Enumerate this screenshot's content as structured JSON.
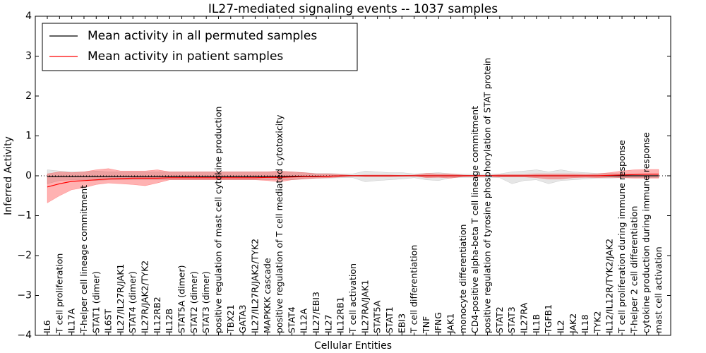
{
  "chart_data": {
    "type": "line",
    "title": "IL27-mediated signaling events -- 1037 samples",
    "xlabel": "Cellular Entities",
    "ylabel": "Inferred Activity",
    "ylim": [
      -4,
      4
    ],
    "yticks": [
      -4,
      -3,
      -2,
      -1,
      0,
      1,
      2,
      3,
      4
    ],
    "ytick_labels": [
      "−4",
      "−3",
      "−2",
      "−1",
      "0",
      "1",
      "2",
      "3",
      "4"
    ],
    "legend": {
      "location": "top-left",
      "entries": [
        {
          "label": "Mean activity in all permuted samples",
          "color": "#000000"
        },
        {
          "label": "Mean activity in patient samples",
          "color": "#ff0000"
        }
      ]
    },
    "categories": [
      "IL6",
      "T cell proliferation",
      "IL17A",
      "T-helper cell lineage commitment",
      "STAT1 (dimer)",
      "IL6ST",
      "IL27/IL27R/JAK1",
      "STAT4 (dimer)",
      "IL27R/JAK2/TYK2",
      "IL12RB2",
      "IL12B",
      "STAT5A (dimer)",
      "STAT2 (dimer)",
      "STAT3 (dimer)",
      "positive regulation of mast cell cytokine production",
      "TBX21",
      "GATA3",
      "IL27/IL27R/JAK2/TYK2",
      "MAPKKK cascade",
      "positive regulation of T cell mediated cytotoxicity",
      "STAT4",
      "IL12A",
      "IL27/EBI3",
      "IL27",
      "IL12RB1",
      "T cell activation",
      "IL27RA/JAK1",
      "STAT5A",
      "STAT1",
      "EBI3",
      "T cell differentiation",
      "TNF",
      "IFNG",
      "JAK1",
      "monocyte differentiation",
      "CD4-positive alpha-beta T cell lineage commitment",
      "positive regulation of tyrosine phosphorylation of STAT protein",
      "STAT2",
      "STAT3",
      "IL27RA",
      "IL1B",
      "TGFB1",
      "IL2",
      "JAK2",
      "IL18",
      "TYK2",
      "IL12/IL12R/TYK2/JAK2",
      "T cell proliferation during immune response",
      "T-helper 2 cell differentiation",
      "cytokine production during immune response",
      "mast cell activation"
    ],
    "series": [
      {
        "name": "Mean activity in all permuted samples",
        "color": "#000000",
        "values": [
          -0.02,
          -0.02,
          -0.02,
          -0.02,
          -0.02,
          -0.02,
          -0.02,
          -0.02,
          -0.02,
          -0.02,
          -0.02,
          -0.02,
          -0.02,
          -0.02,
          -0.02,
          -0.02,
          -0.02,
          -0.02,
          -0.02,
          -0.02,
          -0.01,
          -0.01,
          -0.01,
          -0.01,
          0,
          0,
          0,
          0,
          0,
          0,
          0,
          0,
          0,
          0,
          0,
          0,
          0,
          0,
          0,
          0,
          0,
          0,
          0,
          0,
          0,
          0,
          0,
          0,
          0,
          0,
          0
        ],
        "lower": [
          -0.2,
          -0.12,
          -0.1,
          -0.1,
          -0.12,
          -0.1,
          -0.1,
          -0.1,
          -0.1,
          -0.1,
          -0.1,
          -0.1,
          -0.1,
          -0.1,
          -0.1,
          -0.1,
          -0.1,
          -0.1,
          -0.1,
          -0.1,
          -0.1,
          -0.08,
          -0.06,
          -0.06,
          -0.05,
          -0.05,
          -0.15,
          -0.12,
          -0.1,
          -0.08,
          -0.05,
          -0.1,
          -0.12,
          -0.05,
          -0.04,
          -0.04,
          -0.04,
          -0.05,
          -0.2,
          -0.12,
          -0.1,
          -0.2,
          -0.12,
          -0.1,
          -0.08,
          -0.06,
          -0.06,
          -0.05,
          -0.05,
          -0.05,
          -0.05
        ],
        "upper": [
          0.15,
          0.12,
          0.1,
          0.1,
          0.12,
          0.1,
          0.1,
          0.1,
          0.1,
          0.1,
          0.1,
          0.1,
          0.1,
          0.1,
          0.1,
          0.1,
          0.1,
          0.1,
          0.1,
          0.1,
          0.1,
          0.08,
          0.06,
          0.06,
          0.05,
          0.05,
          0.12,
          0.1,
          0.08,
          0.08,
          0.05,
          0.06,
          0.08,
          0.05,
          0.04,
          0.04,
          0.04,
          0.05,
          0.1,
          0.12,
          0.15,
          0.1,
          0.15,
          0.1,
          0.08,
          0.06,
          0.06,
          0.05,
          0.05,
          0.05,
          0.05
        ]
      },
      {
        "name": "Mean activity in patient samples",
        "color": "#ff0000",
        "values": [
          -0.28,
          -0.2,
          -0.14,
          -0.12,
          -0.1,
          -0.08,
          -0.07,
          -0.06,
          -0.06,
          -0.06,
          -0.05,
          -0.05,
          -0.05,
          -0.05,
          -0.05,
          -0.05,
          -0.05,
          -0.05,
          -0.04,
          -0.04,
          -0.03,
          -0.02,
          -0.02,
          -0.01,
          0,
          0,
          0,
          0,
          0,
          0,
          0,
          0,
          0,
          0,
          0,
          0,
          0,
          0,
          0,
          0,
          0,
          0,
          0,
          0,
          0,
          0,
          0.01,
          0.02,
          0.03,
          0.04,
          0.04
        ],
        "lower": [
          -0.68,
          -0.5,
          -0.35,
          -0.3,
          -0.22,
          -0.18,
          -0.2,
          -0.22,
          -0.25,
          -0.18,
          -0.1,
          -0.1,
          -0.1,
          -0.1,
          -0.1,
          -0.1,
          -0.1,
          -0.1,
          -0.12,
          -0.15,
          -0.1,
          -0.08,
          -0.06,
          -0.05,
          -0.03,
          0,
          -0.02,
          -0.02,
          -0.02,
          -0.01,
          0,
          -0.05,
          -0.04,
          -0.06,
          -0.02,
          -0.01,
          -0.01,
          -0.03,
          -0.03,
          -0.03,
          -0.05,
          -0.08,
          -0.08,
          -0.05,
          -0.04,
          -0.05,
          -0.04,
          -0.05,
          -0.06,
          -0.06,
          -0.06
        ],
        "upper": [
          0.05,
          0.1,
          0.08,
          0.1,
          0.15,
          0.18,
          0.12,
          0.12,
          0.12,
          0.15,
          0.1,
          0.1,
          0.1,
          0.1,
          0.1,
          0.1,
          0.1,
          0.1,
          0.1,
          0.12,
          0.1,
          0.08,
          0.05,
          0.05,
          0.03,
          0.01,
          0.02,
          0.02,
          0.02,
          0.01,
          0.02,
          0.06,
          0.05,
          0.05,
          0.02,
          0.01,
          0.01,
          0.03,
          0.03,
          0.03,
          0.05,
          0.05,
          0.05,
          0.05,
          0.04,
          0.05,
          0.08,
          0.12,
          0.15,
          0.16,
          0.16
        ]
      }
    ],
    "reference_line": {
      "y": 0,
      "style": "dotted"
    }
  }
}
